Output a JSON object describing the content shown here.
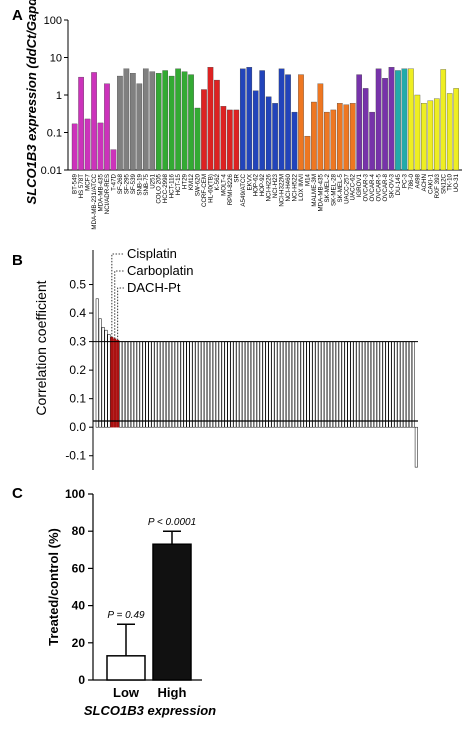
{
  "colors": {
    "pink": "#cc33bb",
    "gray": "#808080",
    "green": "#33aa33",
    "red": "#dd2222",
    "blue": "#2244bb",
    "orange": "#ee7722",
    "purple": "#7733aa",
    "teal": "#22aaaa",
    "yellow": "#eeee22",
    "dark_red": "#aa1111",
    "black": "#111111"
  },
  "chart_data": [
    {
      "panel": "A",
      "type": "bar",
      "ylabel": "SLCO1B3 expression (ddCt/Gapdh)",
      "yscale": "log",
      "ylim": [
        0.01,
        100
      ],
      "yticks": [
        "0.01",
        "0.1",
        "1",
        "10",
        "100"
      ],
      "categories": [
        "BT-549",
        "HS 578T",
        "MCF7",
        "MDA-MB-231/ATCC",
        "MDA-MB-435",
        "NCI/ADR-RES",
        "T-47D",
        "SF-268",
        "SF-295",
        "SF-539",
        "SNB-19",
        "SNB-75",
        "U251",
        "COLO 205",
        "HCC-2998",
        "HCT-116",
        "HCT-15",
        "HT29",
        "KM12",
        "SW-620",
        "CCRF-CEM",
        "HL-60(TB)",
        "K-562",
        "MOLT-4",
        "RPMI-8226",
        "SR",
        "A549/ATCC",
        "EKVX",
        "HOP-62",
        "HOP-92",
        "NCI-H226",
        "NCI-H23",
        "NCI-H322M",
        "NCI-H460",
        "NCI-H522",
        "LOX IMVI",
        "M14",
        "MALME-3M",
        "MDA-MB-435",
        "SK-MEL-2",
        "SK-MEL-28",
        "SK-MEL-5",
        "UACC-257",
        "UACC-62",
        "IGROV1",
        "OVCAR-3",
        "OVCAR-4",
        "OVCAR-5",
        "OVCAR-8",
        "SK-OV-3",
        "DU-145",
        "PC-3",
        "786-0",
        "A498",
        "ACHN",
        "CAKI-1",
        "RXF 393",
        "SN12C",
        "TK-10",
        "UO-31"
      ],
      "values": [
        0.17,
        3.0,
        0.23,
        4.0,
        0.18,
        2.0,
        0.035,
        3.2,
        5.0,
        3.8,
        2.0,
        5.0,
        4.2,
        3.8,
        4.5,
        3.2,
        5.0,
        4.2,
        3.5,
        0.45,
        1.4,
        5.5,
        2.5,
        0.5,
        0.4,
        0.4,
        5.0,
        5.5,
        1.3,
        4.5,
        0.9,
        0.6,
        5.0,
        3.5,
        0.35,
        3.5,
        0.08,
        0.65,
        2.0,
        0.35,
        0.4,
        0.6,
        0.55,
        0.6,
        3.5,
        1.5,
        0.35,
        5.0,
        2.8,
        5.5,
        4.5,
        5.0,
        5.0,
        1.0,
        0.6,
        0.7,
        0.8,
        4.8,
        1.1,
        1.5
      ],
      "color_keys": [
        "pink",
        "pink",
        "pink",
        "pink",
        "pink",
        "pink",
        "pink",
        "gray",
        "gray",
        "gray",
        "gray",
        "gray",
        "gray",
        "green",
        "green",
        "green",
        "green",
        "green",
        "green",
        "green",
        "red",
        "red",
        "red",
        "red",
        "red",
        "red",
        "blue",
        "blue",
        "blue",
        "blue",
        "blue",
        "blue",
        "blue",
        "blue",
        "blue",
        "orange",
        "orange",
        "orange",
        "orange",
        "orange",
        "orange",
        "orange",
        "orange",
        "orange",
        "purple",
        "purple",
        "purple",
        "purple",
        "purple",
        "purple",
        "teal",
        "teal",
        "yellow",
        "yellow",
        "yellow",
        "yellow",
        "yellow",
        "yellow",
        "yellow",
        "yellow"
      ]
    },
    {
      "panel": "B",
      "type": "bar",
      "ylabel": "Correlation coefficient",
      "ylim": [
        -0.15,
        0.6
      ],
      "yticks": [
        "-0.1",
        "0.0",
        "0.1",
        "0.2",
        "0.3",
        "0.4",
        "0.5"
      ],
      "reference_line": 0.3,
      "annotations": [
        "Cisplatin",
        "Carboplatin",
        "DACH-Pt"
      ],
      "highlight_indices": [
        5,
        6,
        7
      ],
      "count": 110,
      "first_values": [
        0.45,
        0.38,
        0.35,
        0.34,
        0.325,
        0.315,
        0.31,
        0.305
      ]
    },
    {
      "panel": "C",
      "type": "bar",
      "ylabel": "Treated/control (%)",
      "xlabel": "SLCO1B3 expression",
      "ylim": [
        0,
        100
      ],
      "yticks": [
        "0",
        "20",
        "40",
        "60",
        "80",
        "100"
      ],
      "categories": [
        "Low",
        "High"
      ],
      "values": [
        13,
        73
      ],
      "errors": [
        17,
        7
      ],
      "pvalues": [
        "P = 0.49",
        "P < 0.0001"
      ]
    }
  ]
}
